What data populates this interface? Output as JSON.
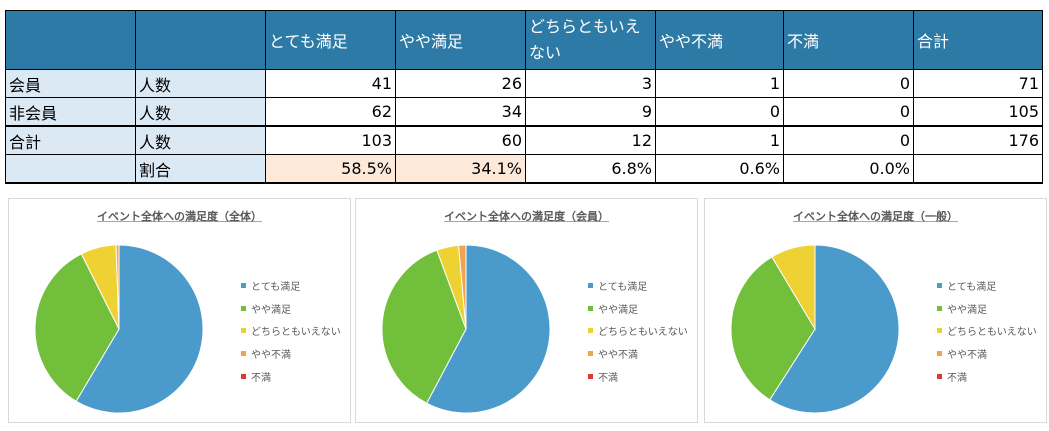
{
  "table": {
    "headers": [
      "",
      "",
      "とても満足",
      "やや満足",
      "どちらともいえない",
      "やや不満",
      "不満",
      "合計"
    ],
    "header_lines": [
      "どちらともいえ",
      "ない"
    ],
    "rows": [
      {
        "group": "会員",
        "metric": "人数",
        "cells": [
          "41",
          "26",
          "3",
          "1",
          "0",
          "71"
        ]
      },
      {
        "group": "非会員",
        "metric": "人数",
        "cells": [
          "62",
          "34",
          "9",
          "0",
          "0",
          "105"
        ]
      },
      {
        "group": "合計",
        "metric": "人数",
        "cells": [
          "103",
          "60",
          "12",
          "1",
          "0",
          "176"
        ]
      },
      {
        "group": "",
        "metric": "割合",
        "cells": [
          "58.5%",
          "34.1%",
          "6.8%",
          "0.6%",
          "0.0%",
          ""
        ]
      }
    ]
  },
  "chart_data": [
    {
      "type": "pie",
      "title": "イベント全体への満足度（全体）",
      "categories": [
        "とても満足",
        "やや満足",
        "どちらともいえない",
        "やや不満",
        "不満"
      ],
      "values": [
        103,
        60,
        12,
        1,
        0
      ],
      "colors": [
        "#4a9bcc",
        "#72bf3b",
        "#eed132",
        "#f1a350",
        "#e03a2e"
      ],
      "legend_position": "right"
    },
    {
      "type": "pie",
      "title": "イベント全体への満足度（会員）",
      "categories": [
        "とても満足",
        "やや満足",
        "どちらともいえない",
        "やや不満",
        "不満"
      ],
      "values": [
        41,
        26,
        3,
        1,
        0
      ],
      "colors": [
        "#4a9bcc",
        "#72bf3b",
        "#eed132",
        "#f1a350",
        "#e03a2e"
      ],
      "legend_position": "right"
    },
    {
      "type": "pie",
      "title": "イベント全体への満足度（一般）",
      "categories": [
        "とても満足",
        "やや満足",
        "どちらともいえない",
        "やや不満",
        "不満"
      ],
      "values": [
        62,
        34,
        9,
        0,
        0
      ],
      "colors": [
        "#4a9bcc",
        "#72bf3b",
        "#eed132",
        "#f1a350",
        "#e03a2e"
      ],
      "legend_position": "right"
    }
  ]
}
